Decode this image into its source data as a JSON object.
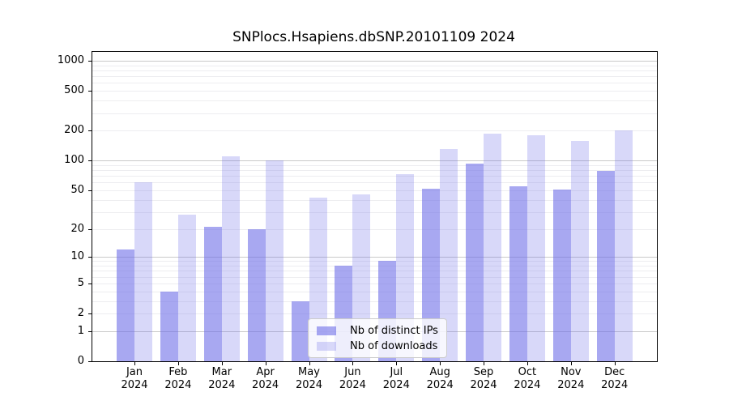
{
  "title": "SNPlocs.Hsapiens.dbSNP.20101109 2024",
  "colors": {
    "bar_distinct_ips": "rgba(110,110,232,0.6)",
    "bar_downloads": "rgba(110,110,232,0.27)",
    "grid_major": "#c9c9c9",
    "grid_minor": "#ededf0",
    "axis": "#000000",
    "text": "#000000",
    "legend_border": "#cccccc",
    "legend_background": "rgba(255,255,255,0.8)",
    "background": "#ffffff"
  },
  "chart_data": {
    "type": "bar",
    "title": "SNPlocs.Hsapiens.dbSNP.20101109 2024",
    "categories": [
      "Jan 2024",
      "Feb 2024",
      "Mar 2024",
      "Apr 2024",
      "May 2024",
      "Jun 2024",
      "Jul 2024",
      "Aug 2024",
      "Sep 2024",
      "Oct 2024",
      "Nov 2024",
      "Dec 2024"
    ],
    "x_tick_month": [
      "Jan",
      "Feb",
      "Mar",
      "Apr",
      "May",
      "Jun",
      "Jul",
      "Aug",
      "Sep",
      "Oct",
      "Nov",
      "Dec"
    ],
    "x_tick_year": "2024",
    "series": [
      {
        "name": "Nb of distinct IPs",
        "values": [
          12,
          4,
          21,
          20,
          3,
          8,
          9,
          52,
          93,
          55,
          51,
          78
        ]
      },
      {
        "name": "Nb of downloads",
        "values": [
          60,
          28,
          110,
          100,
          42,
          45,
          73,
          130,
          188,
          180,
          158,
          200
        ]
      }
    ],
    "yscale": "log1p",
    "yticks": [
      0,
      1,
      2,
      5,
      10,
      20,
      50,
      100,
      200,
      500,
      1000
    ],
    "ylim": [
      0,
      1228
    ],
    "grid": "horizontal major (1,10,100,1000) + minor (2-9 per decade)",
    "legend_position": "lower center"
  },
  "legend": {
    "items": [
      {
        "label": "Nb of distinct IPs"
      },
      {
        "label": "Nb of downloads"
      }
    ]
  }
}
